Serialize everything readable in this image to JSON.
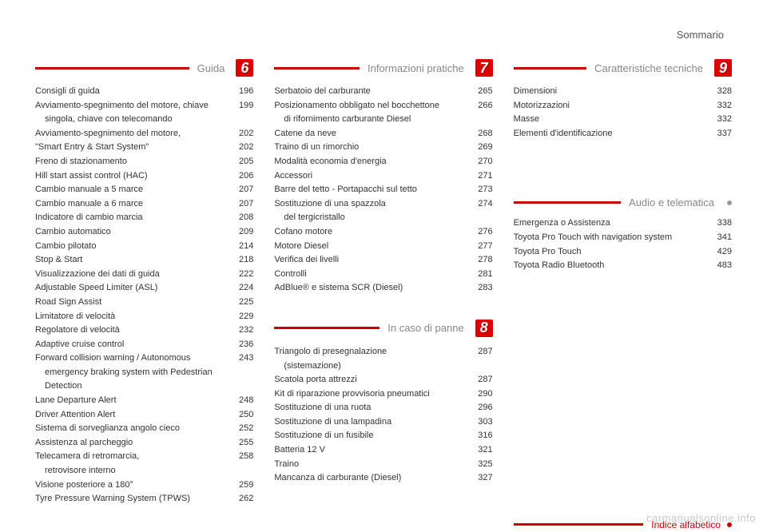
{
  "page_header": "Sommario",
  "watermark": "carmanualsonline.info",
  "columns": [
    {
      "sections": [
        {
          "title": "Guida",
          "chapter": "6",
          "entries": [
            {
              "label": "Consigli di guida",
              "page": "196"
            },
            {
              "label_lines": [
                "Avviamento-spegnimento del motore, chiave",
                "singola, chiave con telecomando"
              ],
              "page": "199"
            },
            {
              "label": "Avviamento-spegnimento del motore,",
              "page": "202"
            },
            {
              "label": "\"Smart Entry & Start System\"",
              "page": "202"
            },
            {
              "label": "Freno di stazionamento",
              "page": "205"
            },
            {
              "label": "Hill start assist control (HAC)",
              "page": "206"
            },
            {
              "label": "Cambio manuale a 5 marce",
              "page": "207"
            },
            {
              "label": "Cambio manuale a 6 marce",
              "page": "207"
            },
            {
              "label": "Indicatore di cambio marcia",
              "page": "208"
            },
            {
              "label": "Cambio automatico",
              "page": "209"
            },
            {
              "label": "Cambio pilotato",
              "page": "214"
            },
            {
              "label": "Stop & Start",
              "page": "218"
            },
            {
              "label": "Visualizzazione dei dati di guida",
              "page": "222"
            },
            {
              "label": "Adjustable Speed Limiter (ASL)",
              "page": "224"
            },
            {
              "label": "Road Sign Assist",
              "page": "225"
            },
            {
              "label": "Limitatore di velocità",
              "page": "229"
            },
            {
              "label": "Regolatore di velocità",
              "page": "232"
            },
            {
              "label": "Adaptive cruise control",
              "page": "236"
            },
            {
              "label_lines": [
                "Forward collision warning / Autonomous",
                "emergency braking system with Pedestrian",
                "Detection"
              ],
              "page": "243"
            },
            {
              "label": "Lane Departure Alert",
              "page": "248"
            },
            {
              "label": "Driver Attention Alert",
              "page": "250"
            },
            {
              "label": "Sistema di sorveglianza angolo cieco",
              "page": "252"
            },
            {
              "label": "Assistenza al parcheggio",
              "page": "255"
            },
            {
              "label_lines": [
                "Telecamera di retromarcia,",
                "retrovisore interno"
              ],
              "page": "258"
            },
            {
              "label": "Visione posteriore a 180°",
              "page": "259"
            },
            {
              "label": "Tyre Pressure Warning System (TPWS)",
              "page": "262"
            }
          ]
        }
      ]
    },
    {
      "sections": [
        {
          "title": "Informazioni pratiche",
          "chapter": "7",
          "entries": [
            {
              "label": "Serbatoio del carburante",
              "page": "265"
            },
            {
              "label_lines": [
                "Posizionamento obbligato nel bocchettone",
                "di rifornimento carburante Diesel"
              ],
              "page": "266"
            },
            {
              "label": "Catene da neve",
              "page": "268"
            },
            {
              "label": "Traino di un rimorchio",
              "page": "269"
            },
            {
              "label": "Modalità economia d'energia",
              "page": "270"
            },
            {
              "label": "Accessori",
              "page": "271"
            },
            {
              "label": "Barre del tetto - Portapacchi sul tetto",
              "page": "273"
            },
            {
              "label_lines": [
                "Sostituzione di una spazzola",
                "del tergicristallo"
              ],
              "page": "274"
            },
            {
              "label": "Cofano motore",
              "page": "276"
            },
            {
              "label": "Motore Diesel",
              "page": "277"
            },
            {
              "label": "Verifica dei livelli",
              "page": "278"
            },
            {
              "label": "Controlli",
              "page": "281"
            },
            {
              "label": "AdBlue® e sistema SCR (Diesel)",
              "page": "283"
            }
          ]
        },
        {
          "title": "In caso di panne",
          "chapter": "8",
          "entries": [
            {
              "label_lines": [
                "Triangolo di presegnalazione",
                "(sistemazione)"
              ],
              "page": "287"
            },
            {
              "label": "Scatola porta attrezzi",
              "page": "287"
            },
            {
              "label": "Kit di riparazione provvisoria pneumatici",
              "page": "290"
            },
            {
              "label": "Sostituzione di una ruota",
              "page": "296"
            },
            {
              "label": "Sostituzione di una lampadina",
              "page": "303"
            },
            {
              "label": "Sostituzione di un fusibile",
              "page": "316"
            },
            {
              "label": "Batteria 12 V",
              "page": "321"
            },
            {
              "label": "Traino",
              "page": "325"
            },
            {
              "label": "Mancanza di carburante (Diesel)",
              "page": "327"
            }
          ]
        }
      ]
    },
    {
      "sections": [
        {
          "title": "Caratteristiche tecniche",
          "chapter": "9",
          "entries": [
            {
              "label": "Dimensioni",
              "page": "328"
            },
            {
              "label": "Motorizzazioni",
              "page": "332"
            },
            {
              "label": "Masse",
              "page": "332"
            },
            {
              "label": "Elementi d'identificazione",
              "page": "337"
            }
          ]
        },
        {
          "title": "Audio e telematica",
          "chapter": "",
          "gray": true,
          "entries": [
            {
              "label": "Emergenza o Assistenza",
              "page": "338"
            },
            {
              "label": "Toyota Pro Touch with navigation system",
              "page": "341"
            },
            {
              "label": "Toyota Pro Touch",
              "page": "429"
            },
            {
              "label": "Toyota Radio Bluetooth",
              "page": "483"
            }
          ]
        }
      ],
      "index": {
        "title": "Indice alfabetico"
      }
    }
  ]
}
